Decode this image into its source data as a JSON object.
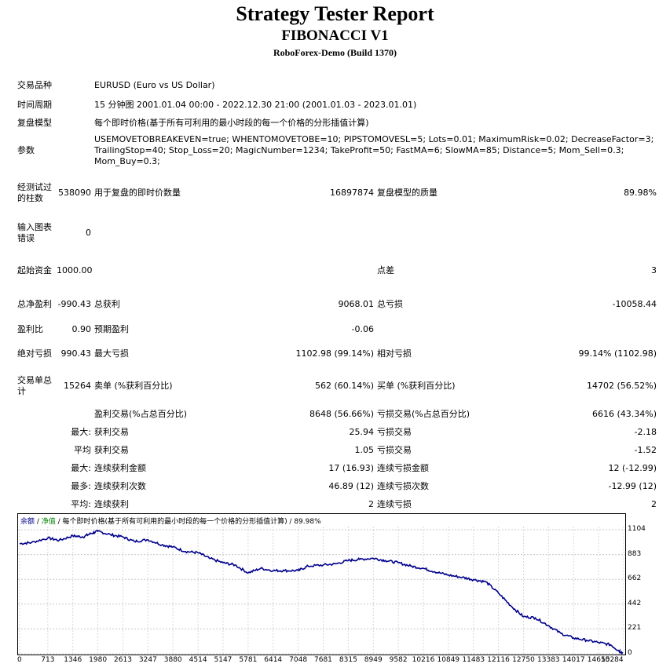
{
  "report": {
    "title": "Strategy Tester Report",
    "expert": "FIBONACCI V1",
    "broker": "RoboForex-Demo (Build 1370)"
  },
  "info": {
    "symbol_label": "交易品种",
    "symbol_value": "EURUSD (Euro vs US Dollar)",
    "period_label": "时间周期",
    "period_value": "15 分钟图 2001.01.04 00:00 - 2022.12.30 21:00 (2001.01.03 - 2023.01.01)",
    "model_label": "复盘模型",
    "model_value": "每个即时价格(基于所有可利用的最小时段的每一个价格的分形插值计算)",
    "params_label": "参数",
    "params_line1": "USEMOVETOBREAKEVEN=true; WHENTOMOVETOBE=10; PIPSTOMOVESL=5; Lots=0.01; MaximumRisk=0.02; DecreaseFactor=3;",
    "params_line2": "TrailingStop=40; Stop_Loss=20; MagicNumber=1234; TakeProfit=50; FastMA=6; SlowMA=85; Distance=5; Mom_Sell=0.3;",
    "params_line3": "Mom_Buy=0.3;"
  },
  "stats": {
    "bars_label": "经测试过的柱数",
    "bars_value": "538090",
    "ticks_label": "用于复盘的即时价数量",
    "ticks_value": "16897874",
    "quality_label": "复盘模型的质量",
    "quality_value": "89.98%",
    "errors_label": "输入图表错误",
    "errors_value": "0",
    "deposit_label": "起始资金",
    "deposit_value": "1000.00",
    "spread_label": "点差",
    "spread_value": "3",
    "net_label": "总净盈利",
    "net_value": "-990.43",
    "gross_profit_label": "总获利",
    "gross_profit_value": "9068.01",
    "gross_loss_label": "总亏损",
    "gross_loss_value": "-10058.44",
    "pf_label": "盈利比",
    "pf_value": "0.90",
    "expected_label": "预期盈利",
    "expected_value": "-0.06",
    "abs_dd_label": "绝对亏损",
    "abs_dd_value": "990.43",
    "max_dd_label": "最大亏损",
    "max_dd_value": "1102.98 (99.14%)",
    "rel_dd_label": "相对亏损",
    "rel_dd_value": "99.14% (1102.98)",
    "total_trades_label": "交易单总计",
    "total_trades_value": "15264",
    "short_label": "卖单 (%获利百分比)",
    "short_value": "562 (60.14%)",
    "long_label": "买单 (%获利百分比)",
    "long_value": "14702 (56.52%)",
    "profit_trades_label": "盈利交易(%占总百分比)",
    "profit_trades_value": "8648 (56.66%)",
    "loss_trades_label": "亏损交易(%占总百分比)",
    "loss_trades_value": "6616 (43.34%)",
    "largest_prefix": "最大:",
    "largest_profit_label": "获利交易",
    "largest_profit_value": "25.94",
    "largest_loss_label": "亏损交易",
    "largest_loss_value": "-2.18",
    "avg_prefix": "平均",
    "avg_profit_label": "获利交易",
    "avg_profit_value": "1.05",
    "avg_loss_label": "亏损交易",
    "avg_loss_value": "-1.52",
    "maxcons_prefix": "最大:",
    "maxcons_wins_label": "连续获利金额",
    "maxcons_wins_value": "17 (16.93)",
    "maxcons_losses_label": "连续亏损金额",
    "maxcons_losses_value": "12 (-12.99)",
    "maxprofit_prefix": "最多:",
    "maxprofit_label": "连续获利次数",
    "maxprofit_value": "46.89 (12)",
    "maxloss_label": "连续亏损次数",
    "maxloss_value": "-12.99 (12)",
    "avgcons_prefix": "平均:",
    "avgcons_wins_label": "连续获利",
    "avgcons_wins_value": "2",
    "avgcons_losses_label": "连续亏损",
    "avgcons_losses_value": "2"
  },
  "chart_data": {
    "type": "line",
    "caption_balance": "余额",
    "caption_sep1": " / ",
    "caption_equity": "净值",
    "caption_rest": " / 每个即时价格(基于所有可利用的最小时段的每一个价格的分形插值计算) / 89.98%",
    "line_color": "#00008b",
    "ylim": [
      0,
      1104
    ],
    "y_ticks": [
      1104,
      883,
      662,
      442,
      221,
      0
    ],
    "x_ticks": [
      0,
      713,
      1346,
      1980,
      2613,
      3247,
      3880,
      4514,
      5147,
      5781,
      6414,
      7048,
      7681,
      8315,
      8949,
      9582,
      10216,
      10849,
      11483,
      12116,
      12750,
      13383,
      14017,
      14650,
      15284
    ],
    "xlim": [
      0,
      15264
    ],
    "series": [
      {
        "x": [
          0,
          300,
          713,
          1000,
          1346,
          1600,
          1800,
          1980,
          2300,
          2613,
          2900,
          3247,
          3600,
          3880,
          4200,
          4514,
          4800,
          5147,
          5450,
          5781,
          6100,
          6414,
          6700,
          7048,
          7300,
          7681,
          8000,
          8315,
          8600,
          8949,
          9250,
          9582,
          9900,
          10216,
          10500,
          10849,
          11200,
          11483,
          11800,
          12116,
          12450,
          12750,
          13050,
          13383,
          13700,
          14017,
          14350,
          14650,
          14950,
          15150,
          15264
        ],
        "y": [
          980,
          990,
          1030,
          1010,
          1050,
          1040,
          1070,
          1090,
          1060,
          1040,
          1000,
          1015,
          970,
          950,
          910,
          900,
          850,
          810,
          790,
          720,
          760,
          740,
          740,
          740,
          780,
          790,
          800,
          830,
          840,
          850,
          830,
          810,
          780,
          760,
          730,
          700,
          680,
          660,
          640,
          540,
          420,
          330,
          320,
          250,
          180,
          140,
          120,
          100,
          80,
          30,
          5
        ]
      }
    ]
  }
}
